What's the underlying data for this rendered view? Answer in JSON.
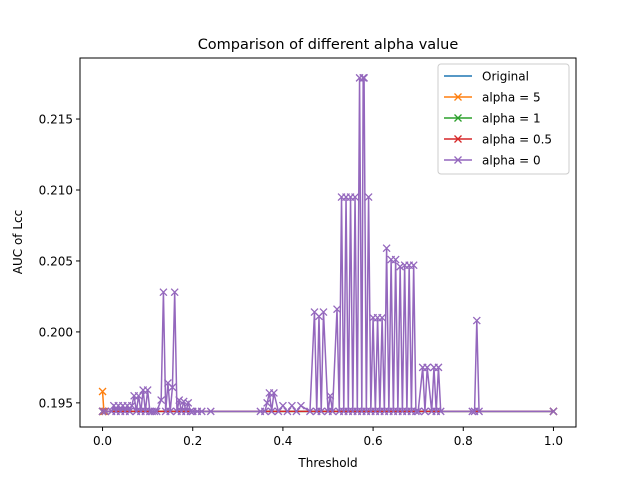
{
  "chart_data": {
    "type": "line",
    "title": "Comparison of different alpha value",
    "xlabel": "Threshold",
    "ylabel": "AUC of Lcc",
    "xlim": [
      -0.05,
      1.05
    ],
    "ylim": [
      0.1933,
      0.2193
    ],
    "xticks": [
      0.0,
      0.2,
      0.4,
      0.6,
      0.8,
      1.0
    ],
    "xtick_labels": [
      "0.0",
      "0.2",
      "0.4",
      "0.6",
      "0.8",
      "1.0"
    ],
    "yticks": [
      0.195,
      0.2,
      0.205,
      0.21,
      0.215
    ],
    "ytick_labels": [
      "0.195",
      "0.200",
      "0.205",
      "0.210",
      "0.215"
    ],
    "grid": false,
    "legend_position": "upper right",
    "series": [
      {
        "name": "Original",
        "color": "#1f77b4",
        "marker": "none",
        "x": [
          0.0,
          0.5,
          0.83,
          1.0
        ],
        "y": [
          0.1944,
          0.1944,
          0.1944,
          0.1944
        ]
      },
      {
        "name": "alpha = 5",
        "color": "#ff7f0e",
        "marker": "x",
        "x": [
          0.0,
          0.003,
          0.006
        ],
        "y": [
          0.1958,
          0.1944,
          0.1944
        ]
      },
      {
        "name": "alpha = 1",
        "color": "#2ca02c",
        "marker": "x",
        "x": [
          0.0,
          1.0
        ],
        "y": [
          0.1944,
          0.1944
        ]
      },
      {
        "name": "alpha = 0.5",
        "color": "#d62728",
        "marker": "x",
        "x": [
          0.0,
          1.0
        ],
        "y": [
          0.1944,
          0.1944
        ]
      },
      {
        "name": "alpha = 0",
        "color": "#9467bd",
        "marker": "x",
        "x": [
          0.0,
          0.006,
          0.02,
          0.025,
          0.03,
          0.035,
          0.04,
          0.045,
          0.05,
          0.055,
          0.06,
          0.065,
          0.07,
          0.075,
          0.08,
          0.085,
          0.09,
          0.095,
          0.1,
          0.105,
          0.11,
          0.115,
          0.12,
          0.13,
          0.135,
          0.14,
          0.145,
          0.15,
          0.155,
          0.16,
          0.165,
          0.17,
          0.175,
          0.18,
          0.185,
          0.19,
          0.195,
          0.2,
          0.21,
          0.22,
          0.24,
          0.35,
          0.36,
          0.365,
          0.37,
          0.375,
          0.38,
          0.39,
          0.4,
          0.41,
          0.42,
          0.43,
          0.44,
          0.46,
          0.47,
          0.475,
          0.48,
          0.485,
          0.49,
          0.5,
          0.505,
          0.51,
          0.52,
          0.525,
          0.53,
          0.535,
          0.54,
          0.545,
          0.55,
          0.555,
          0.56,
          0.565,
          0.57,
          0.575,
          0.578,
          0.58,
          0.585,
          0.59,
          0.595,
          0.6,
          0.605,
          0.61,
          0.615,
          0.62,
          0.625,
          0.63,
          0.635,
          0.64,
          0.645,
          0.65,
          0.655,
          0.66,
          0.665,
          0.67,
          0.675,
          0.68,
          0.685,
          0.69,
          0.695,
          0.7,
          0.71,
          0.715,
          0.72,
          0.73,
          0.735,
          0.74,
          0.745,
          0.75,
          0.82,
          0.825,
          0.83,
          0.835,
          1.0
        ],
        "y": [
          0.1944,
          0.1944,
          0.1944,
          0.1948,
          0.1944,
          0.1948,
          0.1944,
          0.1948,
          0.1944,
          0.1948,
          0.1944,
          0.1948,
          0.1955,
          0.1944,
          0.1955,
          0.1944,
          0.1959,
          0.1944,
          0.1959,
          0.1944,
          0.1944,
          0.1944,
          0.1944,
          0.1952,
          0.2028,
          0.1944,
          0.1964,
          0.1944,
          0.1961,
          0.2028,
          0.1944,
          0.1952,
          0.1944,
          0.1951,
          0.1944,
          0.195,
          0.1944,
          0.1944,
          0.1944,
          0.1944,
          0.1944,
          0.1944,
          0.1944,
          0.195,
          0.1957,
          0.1944,
          0.1957,
          0.1944,
          0.1948,
          0.1944,
          0.1948,
          0.1944,
          0.1948,
          0.1944,
          0.2014,
          0.1944,
          0.2011,
          0.1944,
          0.2014,
          0.1944,
          0.1955,
          0.1944,
          0.2016,
          0.1944,
          0.2095,
          0.1944,
          0.2095,
          0.1944,
          0.2095,
          0.1944,
          0.2095,
          0.1944,
          0.2179,
          0.1944,
          0.2179,
          0.2179,
          0.1944,
          0.2095,
          0.1944,
          0.201,
          0.1944,
          0.201,
          0.1944,
          0.201,
          0.1944,
          0.2059,
          0.1944,
          0.2051,
          0.1944,
          0.2051,
          0.1944,
          0.2046,
          0.1944,
          0.2047,
          0.1944,
          0.2047,
          0.1944,
          0.2047,
          0.1944,
          0.1944,
          0.1975,
          0.1944,
          0.1975,
          0.1944,
          0.1975,
          0.1944,
          0.1975,
          0.1944,
          0.1944,
          0.1944,
          0.2008,
          0.1944,
          0.1944
        ]
      }
    ]
  }
}
